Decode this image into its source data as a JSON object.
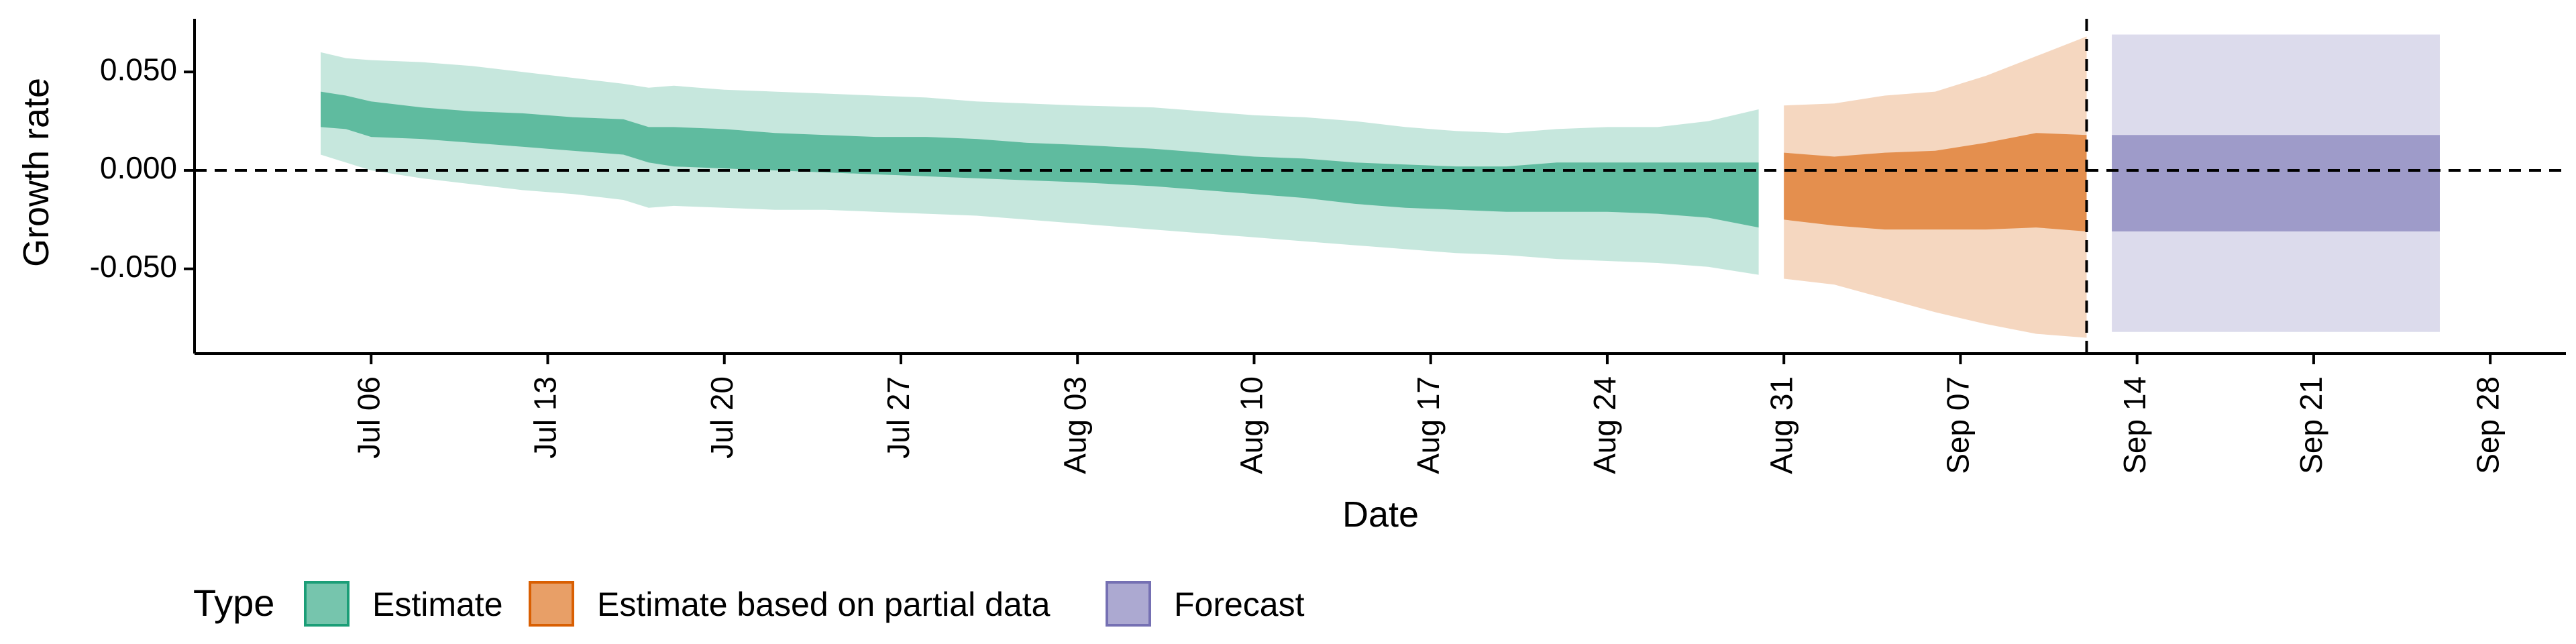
{
  "chart_data": {
    "type": "area",
    "xlabel": "Date",
    "ylabel": "Growth rate",
    "x_ticks": [
      "2020-07-06",
      "2020-07-13",
      "2020-07-20",
      "2020-07-27",
      "2020-08-03",
      "2020-08-10",
      "2020-08-17",
      "2020-08-24",
      "2020-08-31",
      "2020-09-07",
      "2020-09-14",
      "2020-09-21",
      "2020-09-28"
    ],
    "x_tick_labels": [
      "Jul 06",
      "Jul 13",
      "Jul 20",
      "Jul 27",
      "Aug 03",
      "Aug 10",
      "Aug 17",
      "Aug 24",
      "Aug 31",
      "Sep 07",
      "Sep 14",
      "Sep 21",
      "Sep 28"
    ],
    "y_ticks": [
      -0.05,
      0.0,
      0.05
    ],
    "y_tick_labels": [
      "-0.050",
      "0.000",
      "0.050"
    ],
    "xlim": [
      "2020-06-29",
      "2020-10-01"
    ],
    "ylim": [
      -0.093,
      0.077
    ],
    "hline_y": 0.0,
    "vline_date": "2020-09-12",
    "grid": false,
    "legend": {
      "title": "Type",
      "position": "bottom",
      "entries": [
        "Estimate",
        "Estimate based on partial data",
        "Forecast"
      ]
    },
    "colors": {
      "Estimate": "#1b9e77",
      "Estimate based on partial data": "#d95f02",
      "Forecast": "#7570b3"
    },
    "series": [
      {
        "name": "Estimate",
        "dates": [
          "2020-07-04",
          "2020-07-05",
          "2020-07-06",
          "2020-07-08",
          "2020-07-10",
          "2020-07-12",
          "2020-07-14",
          "2020-07-16",
          "2020-07-17",
          "2020-07-18",
          "2020-07-20",
          "2020-07-22",
          "2020-07-24",
          "2020-07-26",
          "2020-07-28",
          "2020-07-30",
          "2020-08-01",
          "2020-08-03",
          "2020-08-06",
          "2020-08-08",
          "2020-08-10",
          "2020-08-12",
          "2020-08-14",
          "2020-08-16",
          "2020-08-18",
          "2020-08-20",
          "2020-08-22",
          "2020-08-24",
          "2020-08-26",
          "2020-08-28",
          "2020-08-30"
        ],
        "upper_90": [
          0.06,
          0.057,
          0.056,
          0.055,
          0.053,
          0.05,
          0.047,
          0.044,
          0.042,
          0.043,
          0.041,
          0.04,
          0.039,
          0.038,
          0.037,
          0.035,
          0.034,
          0.033,
          0.032,
          0.03,
          0.028,
          0.027,
          0.025,
          0.022,
          0.02,
          0.019,
          0.021,
          0.022,
          0.022,
          0.025,
          0.031
        ],
        "upper_50": [
          0.04,
          0.038,
          0.035,
          0.032,
          0.03,
          0.029,
          0.027,
          0.026,
          0.022,
          0.022,
          0.021,
          0.019,
          0.018,
          0.017,
          0.017,
          0.016,
          0.014,
          0.013,
          0.011,
          0.009,
          0.007,
          0.006,
          0.004,
          0.003,
          0.002,
          0.002,
          0.004,
          0.004,
          0.004,
          0.004,
          0.004
        ],
        "lower_50": [
          0.022,
          0.021,
          0.017,
          0.016,
          0.014,
          0.012,
          0.01,
          0.008,
          0.004,
          0.002,
          0.001,
          0.0,
          -0.001,
          -0.002,
          -0.003,
          -0.004,
          -0.005,
          -0.006,
          -0.008,
          -0.01,
          -0.012,
          -0.014,
          -0.017,
          -0.019,
          -0.02,
          -0.021,
          -0.021,
          -0.021,
          -0.022,
          -0.024,
          -0.029
        ],
        "lower_90": [
          0.008,
          0.004,
          0.0,
          -0.004,
          -0.007,
          -0.01,
          -0.012,
          -0.015,
          -0.019,
          -0.018,
          -0.019,
          -0.02,
          -0.02,
          -0.021,
          -0.022,
          -0.023,
          -0.025,
          -0.027,
          -0.03,
          -0.032,
          -0.034,
          -0.036,
          -0.038,
          -0.04,
          -0.042,
          -0.043,
          -0.045,
          -0.046,
          -0.047,
          -0.049,
          -0.053
        ]
      },
      {
        "name": "Estimate based on partial data",
        "dates": [
          "2020-08-31",
          "2020-09-02",
          "2020-09-04",
          "2020-09-06",
          "2020-09-08",
          "2020-09-10",
          "2020-09-12"
        ],
        "upper_90": [
          0.033,
          0.034,
          0.038,
          0.04,
          0.048,
          0.058,
          0.068
        ],
        "upper_50": [
          0.009,
          0.007,
          0.009,
          0.01,
          0.014,
          0.019,
          0.018
        ],
        "lower_50": [
          -0.025,
          -0.028,
          -0.03,
          -0.03,
          -0.03,
          -0.029,
          -0.031
        ],
        "lower_90": [
          -0.055,
          -0.058,
          -0.065,
          -0.072,
          -0.078,
          -0.083,
          -0.085
        ]
      },
      {
        "name": "Forecast",
        "dates": [
          "2020-09-13",
          "2020-09-26"
        ],
        "upper_90": [
          0.069,
          0.069
        ],
        "upper_50": [
          0.018,
          0.018
        ],
        "lower_50": [
          -0.031,
          -0.031
        ],
        "lower_90": [
          -0.082,
          -0.082
        ]
      }
    ]
  }
}
